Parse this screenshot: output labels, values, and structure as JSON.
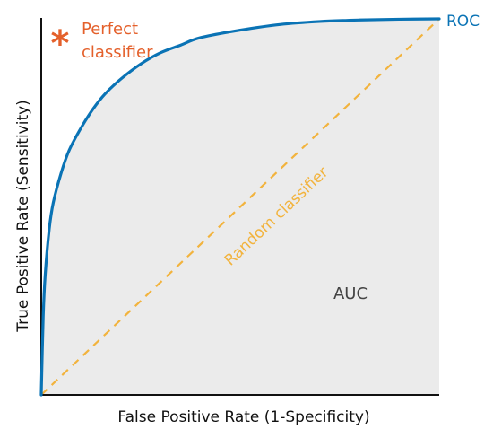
{
  "chart_data": {
    "type": "line",
    "title": "",
    "xlabel": "False Positive Rate (1-Specificity)",
    "ylabel": "True Positive Rate (Sensitivity)",
    "xlim": [
      0,
      1
    ],
    "ylim": [
      0,
      1
    ],
    "grid": false,
    "series": [
      {
        "name": "ROC",
        "x": [
          0,
          0.005,
          0.01,
          0.02,
          0.03,
          0.05,
          0.07,
          0.1,
          0.13,
          0.16,
          0.2,
          0.25,
          0.3,
          0.35,
          0.4,
          0.5,
          0.6,
          0.7,
          0.8,
          0.9,
          1.0
        ],
        "y": [
          0,
          0.21,
          0.32,
          0.44,
          0.51,
          0.59,
          0.65,
          0.71,
          0.76,
          0.8,
          0.84,
          0.88,
          0.91,
          0.93,
          0.95,
          0.97,
          0.985,
          0.993,
          0.997,
          0.999,
          1.0
        ],
        "color": "#0a73b5"
      },
      {
        "name": "Random classifier",
        "x": [
          0,
          1
        ],
        "y": [
          0,
          1
        ],
        "color": "#f2b33d"
      }
    ],
    "annotations": {
      "perfect_classifier": {
        "lines": [
          "Perfect",
          "classifier"
        ],
        "marker": "*",
        "x": 0,
        "y": 1,
        "color": "#e4602b"
      },
      "auc": {
        "text": "AUC",
        "color": "#444444",
        "fill": "#ebebeb"
      }
    }
  }
}
